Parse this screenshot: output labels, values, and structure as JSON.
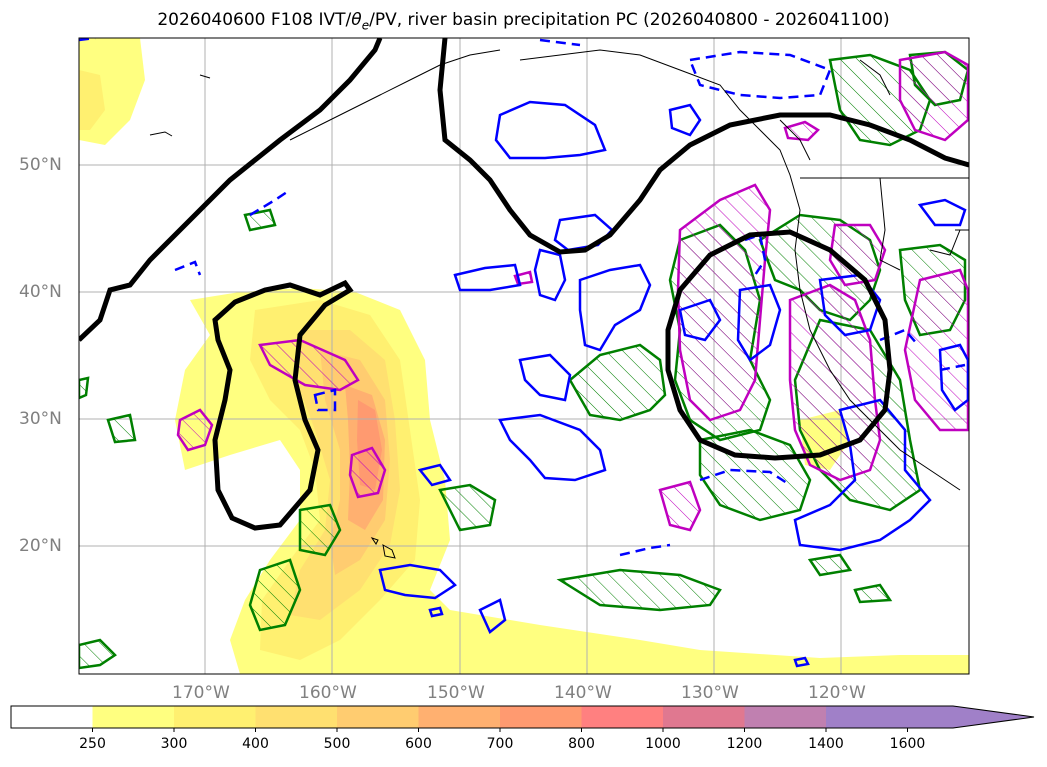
{
  "title": {
    "date": "2026040600",
    "forecast_hour": "F108",
    "fields_prefix": "IVT/",
    "theta": "θ",
    "theta_sub": "e",
    "fields_suffix": "/PV, river basin precipitation PC",
    "valid_range": "(2026040800 - 2026041100)"
  },
  "map": {
    "lon_range": [
      "180°",
      "110°W"
    ],
    "lat_range": [
      "10°N",
      "60°N"
    ],
    "lat_labels": [
      "50°N",
      "40°N",
      "30°N",
      "20°N"
    ],
    "lon_labels": [
      "170°W",
      "160°W",
      "150°W",
      "140°W",
      "130°W",
      "120°W"
    ],
    "gridlines": true,
    "contour_colors": {
      "theta_e": "#000000",
      "pv_solid": "#0000ff",
      "precip_pc": "#008000",
      "ivt_high": "#bf00bf"
    }
  },
  "colorbar": {
    "ticks": [
      "250",
      "300",
      "400",
      "500",
      "600",
      "700",
      "800",
      "1000",
      "1200",
      "1400",
      "1600"
    ],
    "colors": [
      "#ffffff",
      "#ffff80",
      "#fff070",
      "#ffe070",
      "#ffcc70",
      "#ffb070",
      "#ff9a70",
      "#ff8080",
      "#e07890",
      "#c080b0",
      "#a080c8",
      "#a080c8"
    ],
    "extend": "max"
  }
}
